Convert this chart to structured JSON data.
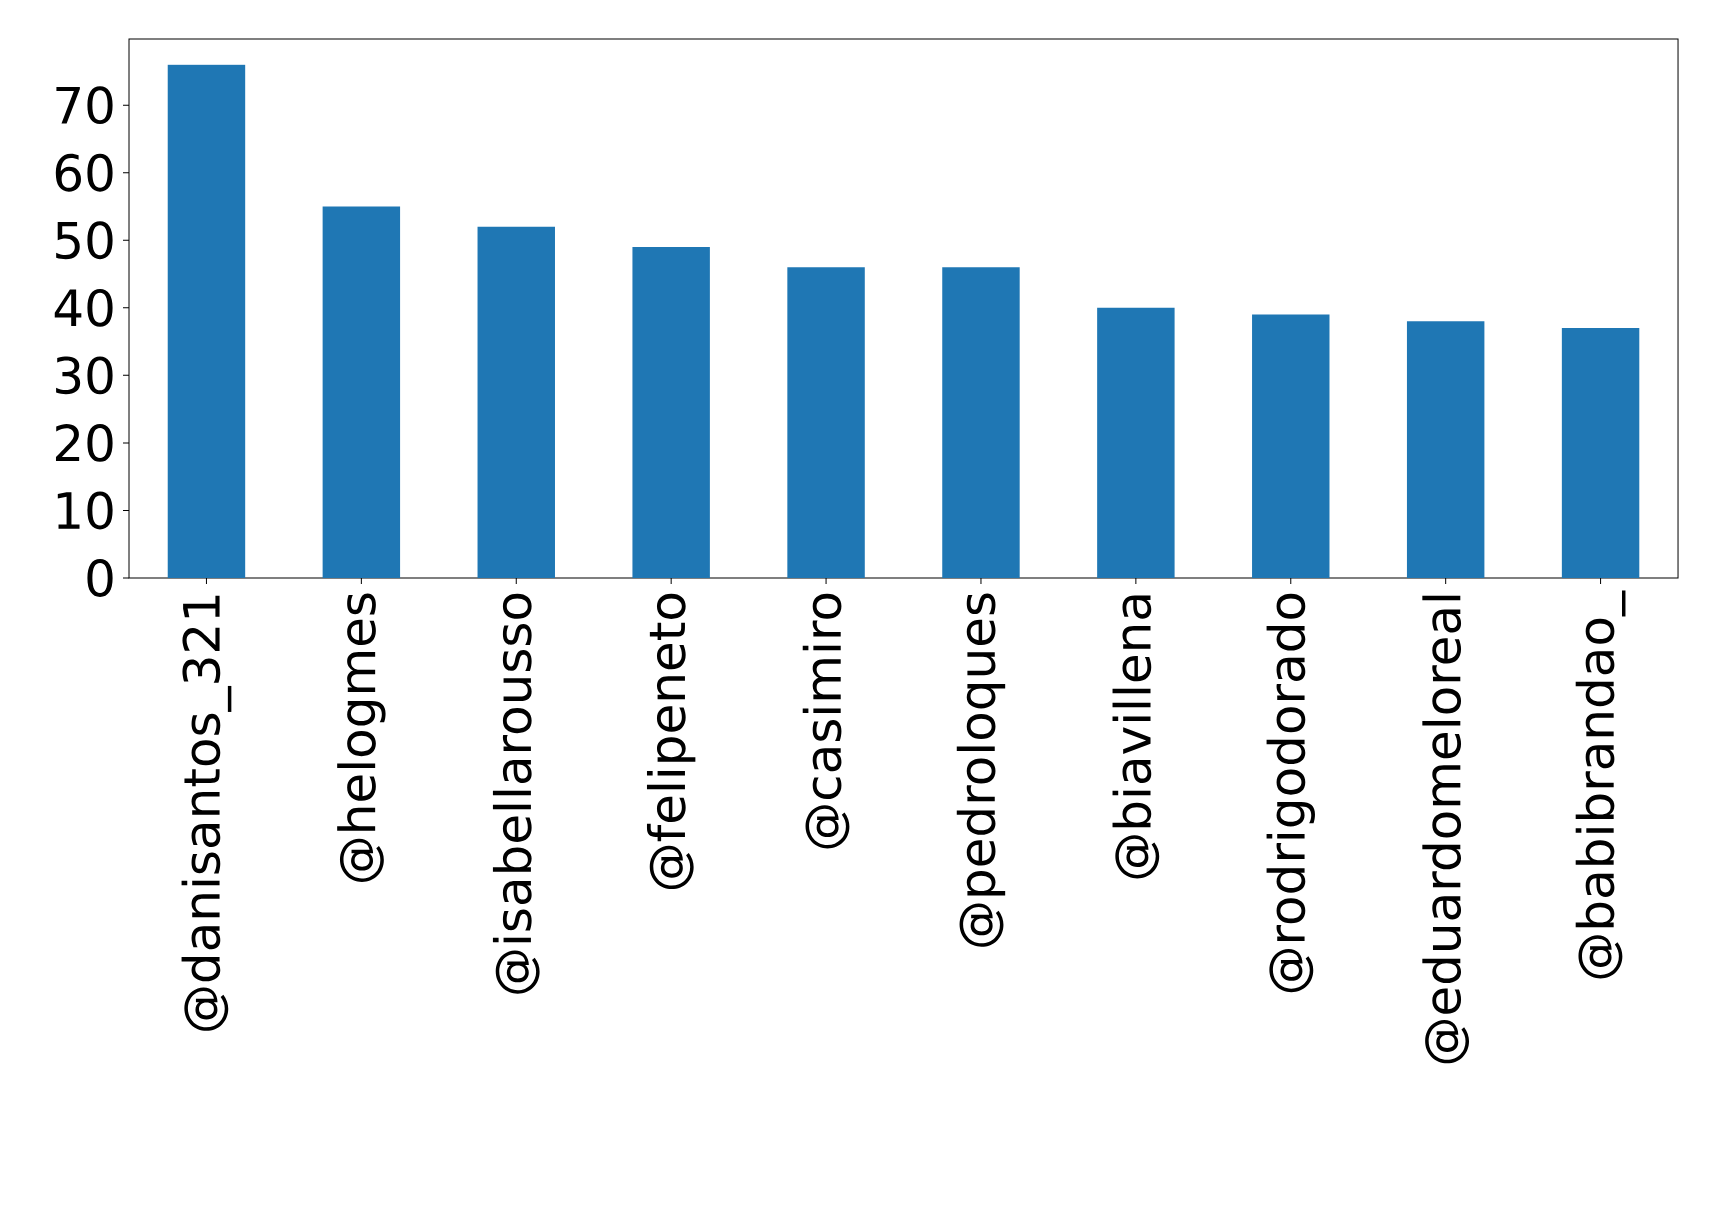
{
  "chart_data": {
    "type": "bar",
    "categories": [
      "@danisantos_321",
      "@helogmes",
      "@isabellarousso",
      "@felipeneto",
      "@casimiro",
      "@pedroloques",
      "@biavillena",
      "@rodrigodorado",
      "@eduardomeloreal",
      "@babibrandao_"
    ],
    "values": [
      76,
      55,
      52,
      49,
      46,
      46,
      40,
      39,
      38,
      37
    ],
    "color": "#1f77b4",
    "ylim": [
      0,
      79.8
    ],
    "yticks": [
      0,
      10,
      20,
      30,
      40,
      50,
      60,
      70
    ],
    "grid": false
  }
}
